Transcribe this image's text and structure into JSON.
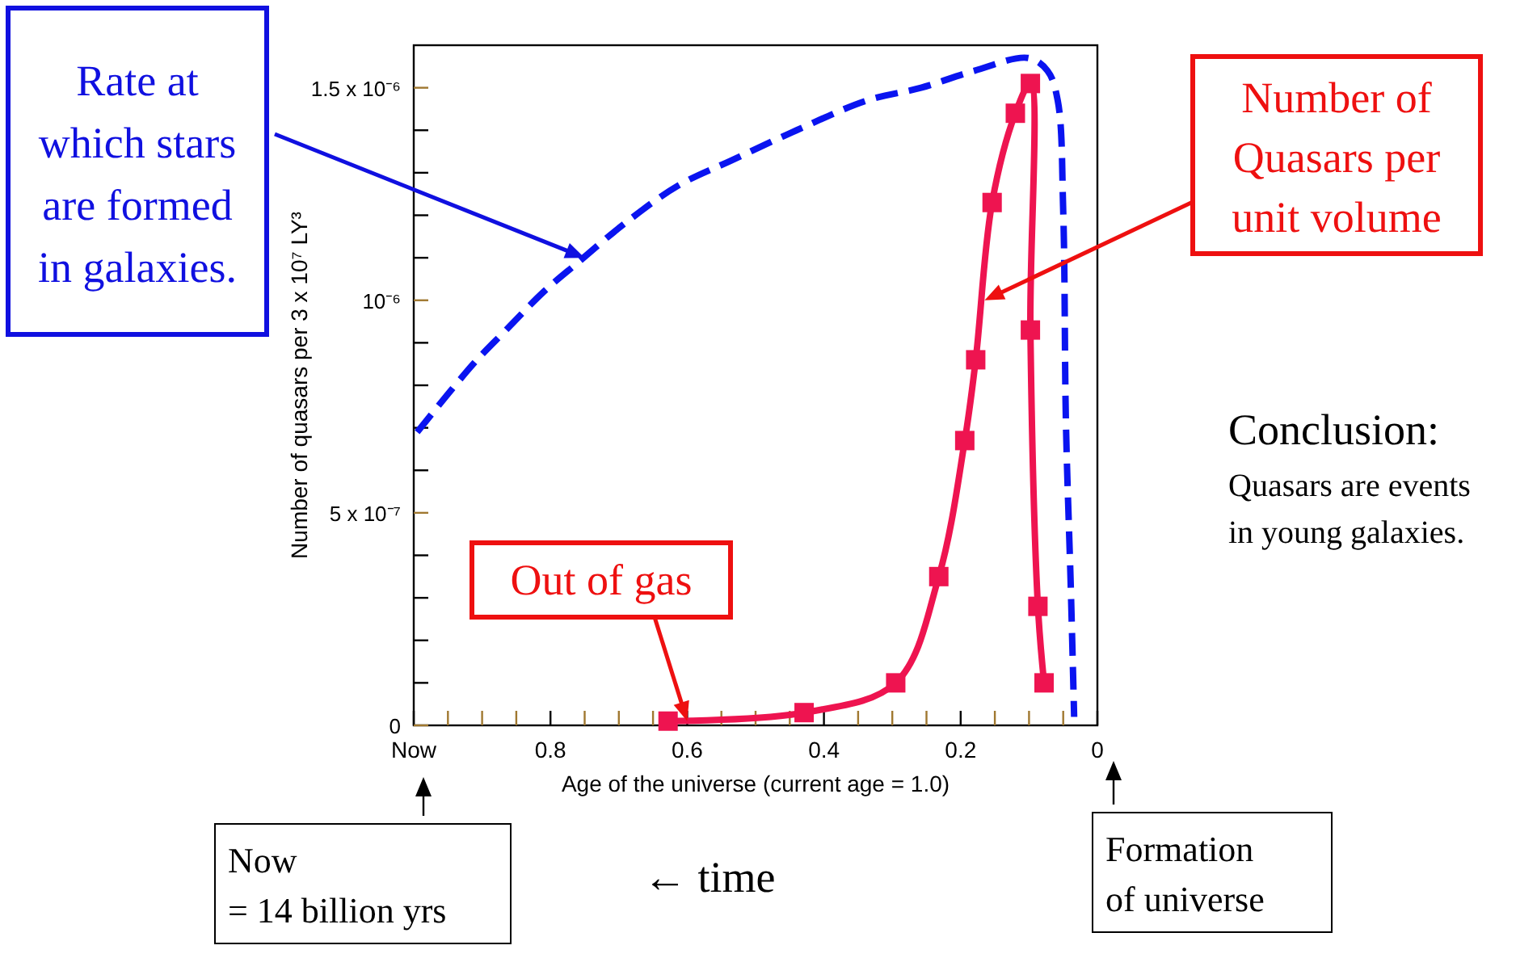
{
  "chart_data": {
    "type": "line",
    "xlabel": "Age of the universe (current age = 1.0)",
    "ylabel": "Number of quasars per 3 x 10⁷ LY³",
    "xlim": [
      1,
      0
    ],
    "ylim": [
      0,
      1.6e-06
    ],
    "xticks": [
      {
        "value": 1,
        "label": "Now"
      },
      {
        "value": 0.95,
        "label": null
      },
      {
        "value": 0.9,
        "label": null
      },
      {
        "value": 0.85,
        "label": null
      },
      0.8,
      {
        "value": 0.75,
        "label": null
      },
      {
        "value": 0.7,
        "label": null
      },
      {
        "value": 0.65,
        "label": null
      },
      0.6,
      {
        "value": 0.55,
        "label": null
      },
      {
        "value": 0.5,
        "label": null
      },
      {
        "value": 0.45,
        "label": null
      },
      0.4,
      {
        "value": 0.35,
        "label": null
      },
      {
        "value": 0.3,
        "label": null
      },
      {
        "value": 0.25,
        "label": null
      },
      0.2,
      {
        "value": 0.15,
        "label": null
      },
      {
        "value": 0.1,
        "label": null
      },
      {
        "value": 0.05,
        "label": null
      },
      0
    ],
    "yticks": [
      {
        "value": 0,
        "label": "0"
      },
      {
        "value": 1e-07,
        "label": null
      },
      {
        "value": 2e-07,
        "label": null
      },
      {
        "value": 3e-07,
        "label": null
      },
      {
        "value": 4e-07,
        "label": null
      },
      {
        "value": 5e-07,
        "label": "5 x 10⁻⁷"
      },
      {
        "value": 6e-07,
        "label": null
      },
      {
        "value": 7e-07,
        "label": null
      },
      {
        "value": 8e-07,
        "label": null
      },
      {
        "value": 9e-07,
        "label": null
      },
      {
        "value": 1e-06,
        "label": "10⁻⁶"
      },
      {
        "value": 1.1e-06,
        "label": null
      },
      {
        "value": 1.2e-06,
        "label": null
      },
      {
        "value": 1.3e-06,
        "label": null
      },
      {
        "value": 1.4e-06,
        "label": null
      },
      {
        "value": 1.5e-06,
        "label": "1.5 x 10⁻⁶"
      }
    ],
    "grid": false,
    "series": [
      {
        "color": "#0a14f0",
        "line_style": "dashed",
        "marker": "none",
        "x": [
          0.995,
          0.913,
          0.865,
          0.81,
          0.759,
          0.692,
          0.613,
          0.534,
          0.44,
          0.337,
          0.258,
          0.18,
          0.101,
          0.073,
          0.058,
          0.05,
          0.046,
          0.039,
          0.034
        ],
        "values": [
          6.9e-07,
          8.5e-07,
          9.3e-07,
          1.02e-06,
          1.09e-06,
          1.18e-06,
          1.27e-06,
          1.33e-06,
          1.4e-06,
          1.47e-06,
          1.5e-06,
          1.54e-06,
          1.57e-06,
          1.54e-06,
          1.47e-06,
          1.21e-06,
          7.1e-07,
          3.3e-07,
          2e-08
        ]
      },
      {
        "color": "#ee1450",
        "line_style": "solid",
        "marker": "square",
        "x": [
          0.628,
          0.429,
          0.295,
          0.232,
          0.194,
          0.178,
          0.154,
          0.12,
          0.098,
          0.098,
          0.087,
          0.078
        ],
        "values": [
          1e-08,
          3e-08,
          1e-07,
          3.5e-07,
          6.7e-07,
          8.6e-07,
          1.23e-06,
          1.44e-06,
          1.51e-06,
          9.3e-07,
          2.8e-07,
          1e-07
        ]
      }
    ],
    "annotations": [
      {
        "text": "Rate at which stars are formed in galaxies.",
        "x": 0.75,
        "y": 1.1e-06
      },
      {
        "text": "Number of Quasars per unit volume",
        "x": 0.165,
        "y": 1e-06
      },
      {
        "text": "Out of gas",
        "x": 0.6,
        "y": 1e-08
      },
      "Conclusion:",
      "Quasars are events in young galaxies.",
      "Now = 14 billion yrs",
      "Formation of universe",
      "← time"
    ]
  }
}
